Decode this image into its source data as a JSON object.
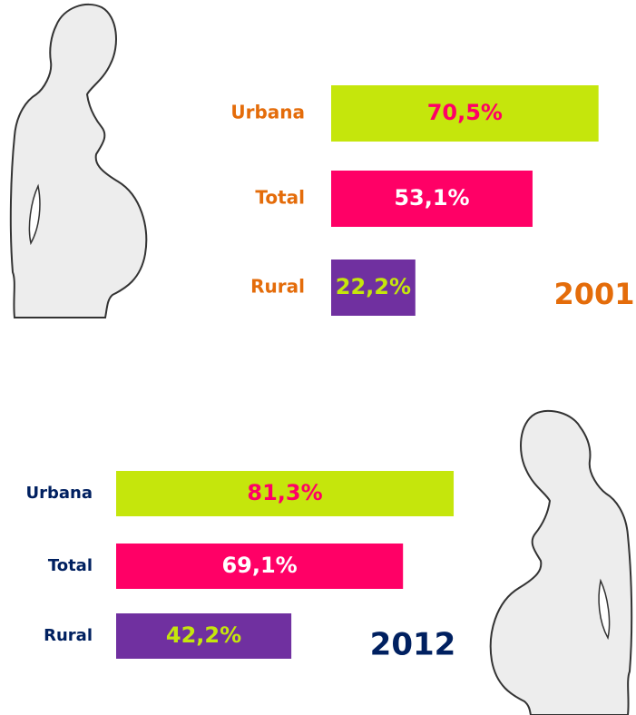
{
  "chart_data": [
    {
      "type": "bar",
      "title": "2001",
      "title_color": "#e46c0a",
      "categories": [
        "Urbana",
        "Total",
        "Rural"
      ],
      "category_color": "#e46c0a",
      "values": [
        70.5,
        53.1,
        22.2
      ],
      "value_labels": [
        "70,5%",
        "53,1%",
        "22,2%"
      ],
      "colors": [
        "#c5e60c",
        "#ff0066",
        "#7030a0"
      ],
      "value_label_colors": [
        "#ff0066",
        "#ffffff",
        "#c5e60c"
      ]
    },
    {
      "type": "bar",
      "title": "2012",
      "title_color": "#002060",
      "categories": [
        "Urbana",
        "Total",
        "Rural"
      ],
      "category_color": "#002060",
      "values": [
        81.3,
        69.1,
        42.2
      ],
      "value_labels": [
        "81,3%",
        "69,1%",
        "42,2%"
      ],
      "colors": [
        "#c5e60c",
        "#ff0066",
        "#7030a0"
      ],
      "value_label_colors": [
        "#ff0066",
        "#ffffff",
        "#c5e60c"
      ]
    }
  ]
}
